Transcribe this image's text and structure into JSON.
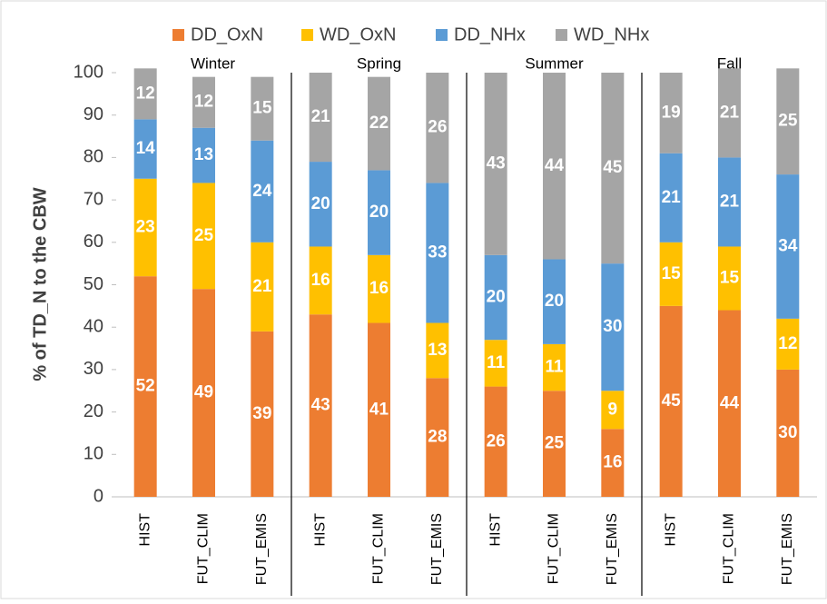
{
  "chart_data": {
    "type": "stacked_bar",
    "y_label": "% of TD_N to the CBW",
    "groups": [
      "Winter",
      "Spring",
      "Summer",
      "Fall"
    ],
    "categories": [
      "HIST",
      "FUT_CLIM",
      "FUT_EMIS",
      "HIST",
      "FUT_CLIM",
      "FUT_EMIS",
      "HIST",
      "FUT_CLIM",
      "FUT_EMIS",
      "HIST",
      "FUT_CLIM",
      "FUT_EMIS"
    ],
    "series": [
      {
        "name": "DD_OxN",
        "color": "#ed7d31",
        "values": [
          52,
          49,
          39,
          43,
          41,
          28,
          26,
          25,
          16,
          45,
          44,
          30
        ]
      },
      {
        "name": "WD_OxN",
        "color": "#ffc000",
        "values": [
          23,
          25,
          21,
          16,
          16,
          13,
          11,
          11,
          9,
          15,
          15,
          12
        ]
      },
      {
        "name": "DD_NHx",
        "color": "#5b9bd5",
        "values": [
          14,
          13,
          24,
          20,
          20,
          33,
          20,
          20,
          30,
          21,
          21,
          34
        ]
      },
      {
        "name": "WD_NHx",
        "color": "#a5a5a5",
        "values": [
          12,
          12,
          15,
          21,
          22,
          26,
          43,
          44,
          45,
          19,
          21,
          25
        ]
      }
    ],
    "ylim": [
      0,
      100
    ],
    "yticks": [
      0,
      10,
      20,
      30,
      40,
      50,
      60,
      70,
      80,
      90,
      100
    ],
    "grid": false,
    "legend": "top"
  }
}
